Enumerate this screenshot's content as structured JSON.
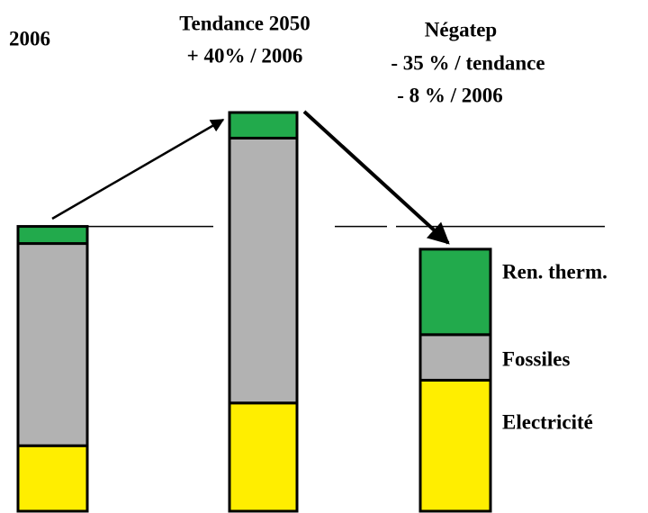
{
  "chart_data": {
    "type": "stacked-bar",
    "categories": [
      "2006",
      "Tendance 2050",
      "Négatep"
    ],
    "series": [
      {
        "name": "Electricité",
        "color": "#ffee00",
        "values": [
          23,
          38,
          46
        ]
      },
      {
        "name": "Fossiles",
        "color": "#b2b2b2",
        "values": [
          71,
          93,
          16
        ]
      },
      {
        "name": "Ren. therm.",
        "color": "#22aa4c",
        "values": [
          6,
          9,
          30
        ]
      }
    ],
    "annotations": [
      "+ 40% / 2006",
      "- 35 % / tendance",
      "- 8 % / 2006"
    ],
    "ylim": [
      0,
      140
    ]
  }
}
